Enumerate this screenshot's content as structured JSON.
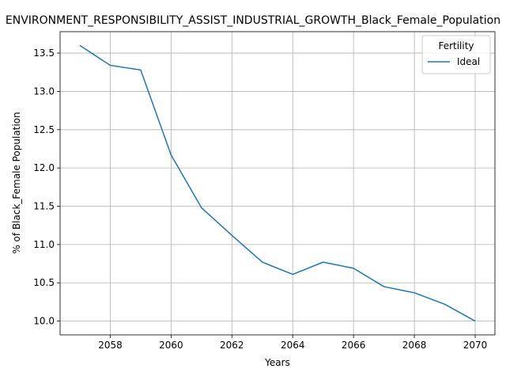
{
  "chart_data": {
    "type": "line",
    "title": "ENVIRONMENT_RESPONSIBILITY_ASSIST_INDUSTRIAL_GROWTH_Black_Female_Population",
    "xlabel": "Years",
    "ylabel": "% of Black_Female Population",
    "x": [
      2057,
      2058,
      2059,
      2060,
      2061,
      2062,
      2063,
      2064,
      2065,
      2066,
      2067,
      2068,
      2069,
      2070
    ],
    "series": [
      {
        "name": "Ideal",
        "color": "#1f77b4",
        "values": [
          13.6,
          13.34,
          13.28,
          12.17,
          11.48,
          11.12,
          10.77,
          10.61,
          10.77,
          10.69,
          10.45,
          10.37,
          10.22,
          10.0
        ]
      }
    ],
    "xlim": [
      2056.35,
      2070.65
    ],
    "ylim": [
      9.82,
      13.78
    ],
    "xticks": [
      2058,
      2060,
      2062,
      2064,
      2066,
      2068,
      2070
    ],
    "yticks": [
      10.0,
      10.5,
      11.0,
      11.5,
      12.0,
      12.5,
      13.0,
      13.5
    ],
    "grid": true,
    "legend": {
      "title": "Fertility",
      "placement": "top-right"
    }
  }
}
